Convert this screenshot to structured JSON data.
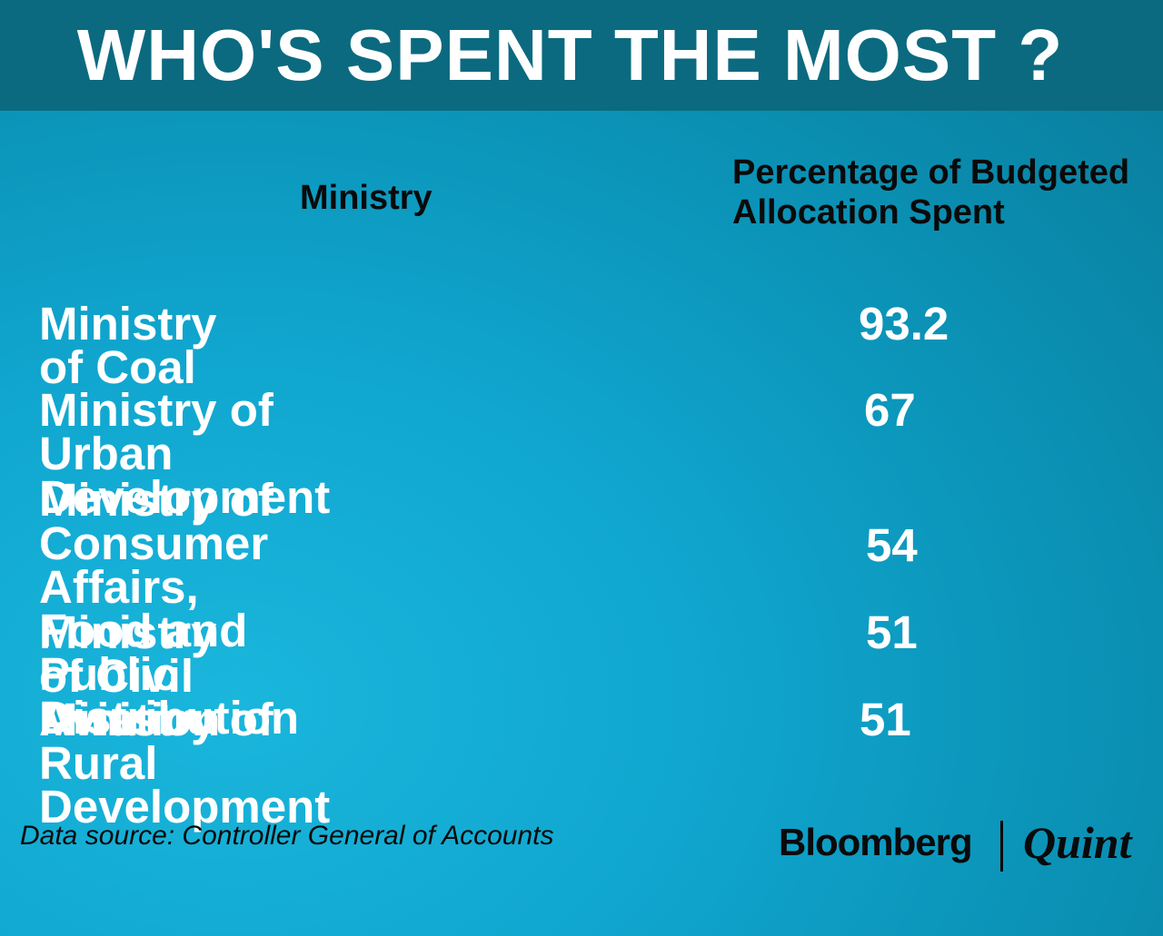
{
  "title": "WHO'S SPENT THE MOST ?",
  "chart_data": {
    "type": "table",
    "title": "WHO'S SPENT THE MOST ?",
    "columns": [
      "Ministry",
      "Percentage of Budgeted Allocation Spent"
    ],
    "rows": [
      {
        "ministry": "Ministry of Coal",
        "value": "93.2"
      },
      {
        "ministry": "Ministry of Urban Development",
        "value": "67"
      },
      {
        "ministry": "Ministry of Consumer Affairs,\nFood and Public Distribution",
        "value": "54"
      },
      {
        "ministry": "Ministry of Civil Aviation",
        "value": "51"
      },
      {
        "ministry": "Ministry of Rural Development",
        "value": "51"
      }
    ]
  },
  "header": {
    "ministry": "Ministry",
    "percentage_line1": "Percentage of Budgeted",
    "percentage_line2": "Allocation Spent"
  },
  "source": "Data source: Controller General of Accounts",
  "branding": {
    "bloomberg": "Bloomberg",
    "quint": "Quint"
  },
  "colors": {
    "header_band": "#0b6a7f",
    "background": "#10a6cf",
    "text_light": "#ffffff",
    "text_dark": "#0a0a0a"
  }
}
